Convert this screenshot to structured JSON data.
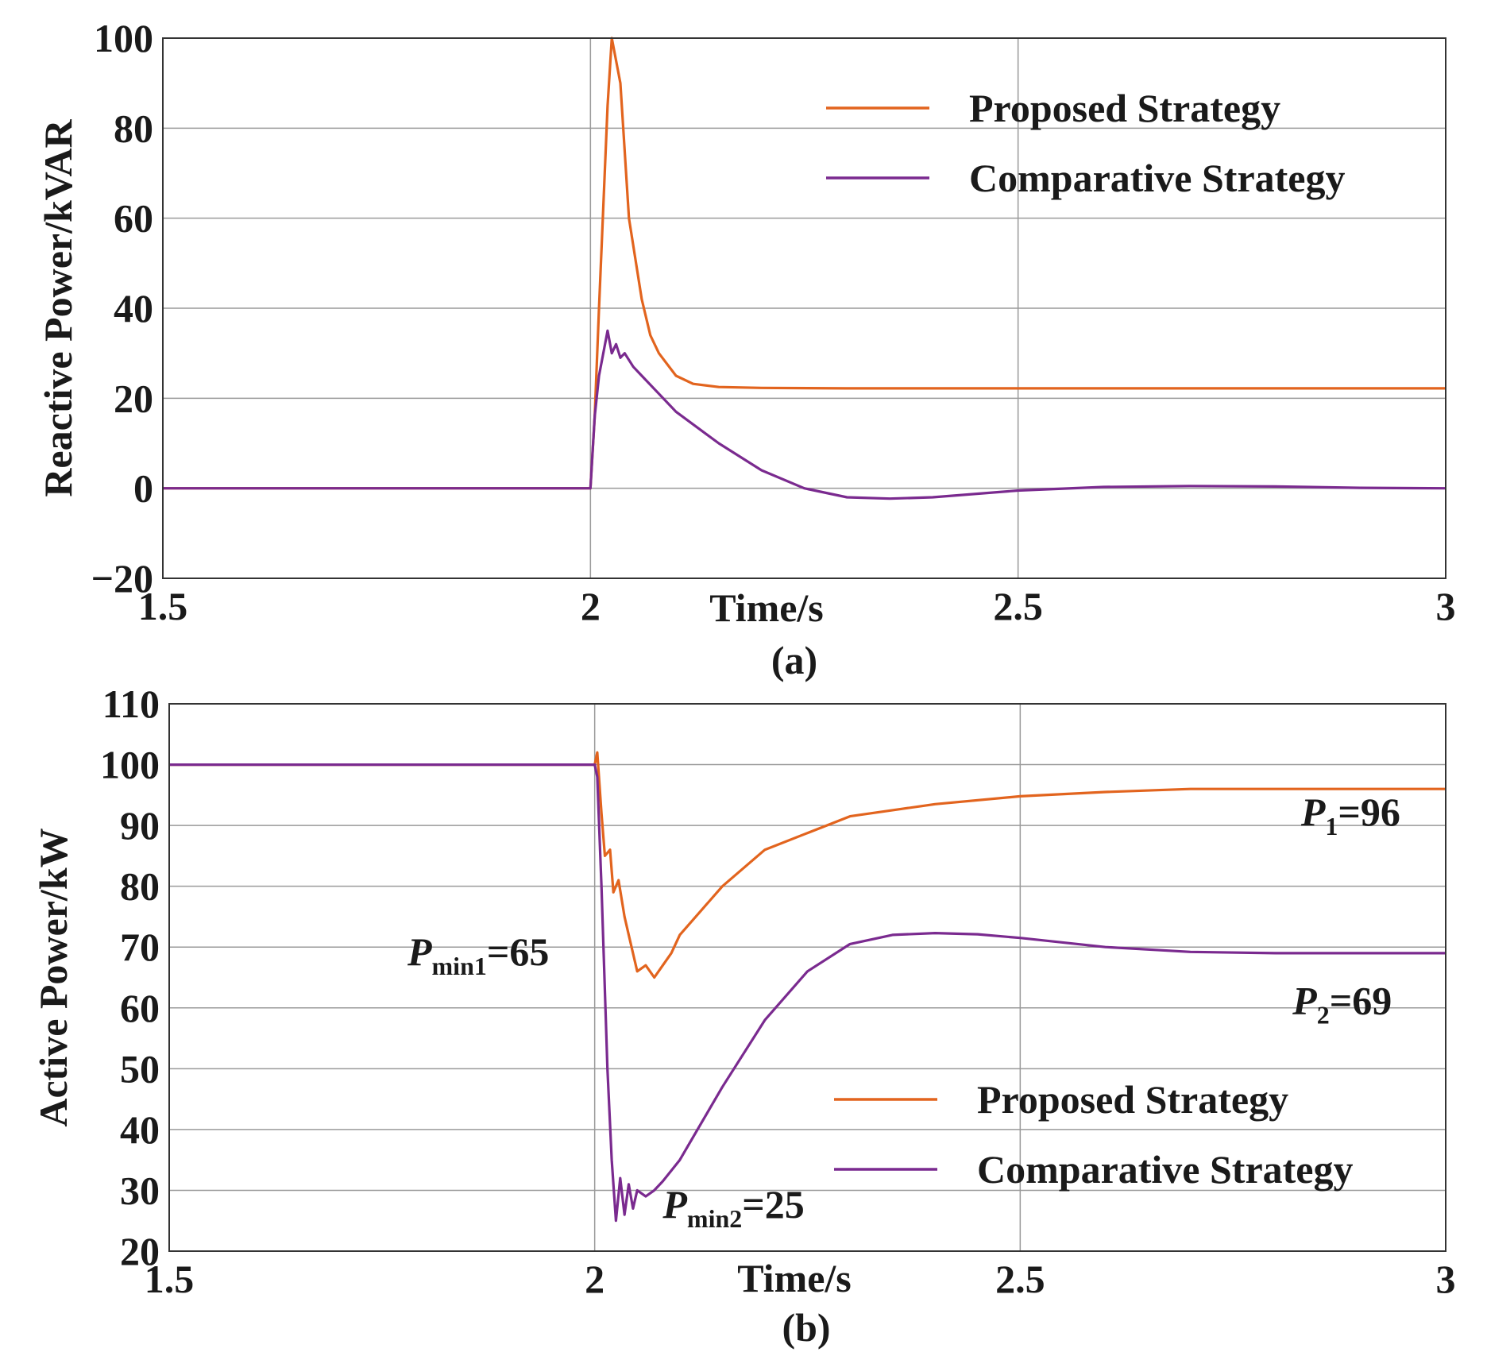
{
  "chart_data": [
    {
      "type": "line",
      "caption": "(a)",
      "xlabel": "Time/s",
      "ylabel": "Reactive Power/kVAR",
      "xlim": [
        1.5,
        3
      ],
      "ylim": [
        -20,
        100
      ],
      "xticks": [
        "1.5",
        "2",
        "2.5",
        "3"
      ],
      "xtick_values": [
        1.5,
        2,
        2.5,
        3
      ],
      "yticks": [
        "100",
        "80",
        "60",
        "40",
        "20",
        "0",
        "−20"
      ],
      "ytick_values": [
        100,
        80,
        60,
        40,
        20,
        0,
        -20
      ],
      "grid": true,
      "legend_position": "top-right",
      "series": [
        {
          "name": "Proposed Strategy",
          "color": "#e2641e",
          "x": [
            1.5,
            2.0,
            2.005,
            2.01,
            2.02,
            2.025,
            2.035,
            2.045,
            2.06,
            2.07,
            2.08,
            2.1,
            2.12,
            2.15,
            2.2,
            2.3,
            2.5,
            3.0
          ],
          "y": [
            0,
            0,
            16,
            40,
            85,
            100,
            90,
            60,
            42,
            34,
            30,
            25,
            23.2,
            22.5,
            22.3,
            22.2,
            22.2,
            22.2
          ]
        },
        {
          "name": "Comparative Strategy",
          "color": "#7a2a8f",
          "x": [
            1.5,
            2.0,
            2.005,
            2.01,
            2.02,
            2.025,
            2.03,
            2.035,
            2.04,
            2.05,
            2.06,
            2.08,
            2.1,
            2.15,
            2.2,
            2.25,
            2.3,
            2.35,
            2.4,
            2.5,
            2.6,
            2.7,
            2.8,
            2.9,
            3.0
          ],
          "y": [
            0,
            0,
            16,
            25,
            35,
            30,
            32,
            29,
            30,
            27,
            25,
            21,
            17,
            10,
            4,
            0,
            -2,
            -2.3,
            -2,
            -0.5,
            0.3,
            0.5,
            0.4,
            0.1,
            0
          ]
        }
      ]
    },
    {
      "type": "line",
      "caption": "(b)",
      "xlabel": "Time/s",
      "ylabel": "Active Power/kW",
      "xlim": [
        1.5,
        3
      ],
      "ylim": [
        20,
        110
      ],
      "xticks": [
        "1.5",
        "2",
        "2.5",
        "3"
      ],
      "xtick_values": [
        1.5,
        2,
        2.5,
        3
      ],
      "yticks": [
        "110",
        "100",
        "90",
        "80",
        "70",
        "60",
        "50",
        "40",
        "30",
        "20"
      ],
      "ytick_values": [
        110,
        100,
        90,
        80,
        70,
        60,
        50,
        40,
        30,
        20
      ],
      "grid": true,
      "legend_position": "lower-right",
      "annotations": [
        {
          "italic": "P",
          "sub": "1",
          "rest": "=96",
          "x": 2.83,
          "y": 90
        },
        {
          "italic": "P",
          "sub": "min1",
          "rest": "=65",
          "x": 1.78,
          "y": 67
        },
        {
          "italic": "P",
          "sub": "2",
          "rest": "=69",
          "x": 2.82,
          "y": 59
        },
        {
          "italic": "P",
          "sub": "min2",
          "rest": "=25",
          "x": 2.08,
          "y": 25.5
        }
      ],
      "series": [
        {
          "name": "Proposed Strategy",
          "color": "#e2641e",
          "x": [
            1.5,
            2.0,
            2.003,
            2.008,
            2.012,
            2.018,
            2.022,
            2.028,
            2.035,
            2.04,
            2.05,
            2.06,
            2.07,
            2.08,
            2.09,
            2.1,
            2.15,
            2.2,
            2.3,
            2.4,
            2.5,
            2.6,
            2.7,
            2.8,
            2.9,
            3.0
          ],
          "y": [
            100,
            100,
            102,
            92,
            85,
            86,
            79,
            81,
            75,
            72,
            66,
            67,
            65,
            67,
            69,
            72,
            80,
            86,
            91.5,
            93.5,
            94.8,
            95.5,
            96,
            96,
            96,
            96
          ]
        },
        {
          "name": "Comparative Strategy",
          "color": "#7a2a8f",
          "x": [
            1.5,
            2.0,
            2.003,
            2.008,
            2.015,
            2.02,
            2.025,
            2.03,
            2.035,
            2.04,
            2.045,
            2.05,
            2.06,
            2.07,
            2.08,
            2.1,
            2.15,
            2.2,
            2.25,
            2.3,
            2.35,
            2.4,
            2.45,
            2.5,
            2.6,
            2.7,
            2.8,
            2.9,
            3.0
          ],
          "y": [
            100,
            100,
            98,
            80,
            50,
            35,
            25,
            32,
            26,
            31,
            27,
            30,
            29,
            30,
            31.5,
            35,
            47,
            58,
            66,
            70.5,
            72,
            72.3,
            72.1,
            71.5,
            70,
            69.2,
            69,
            69,
            69
          ]
        }
      ]
    }
  ]
}
